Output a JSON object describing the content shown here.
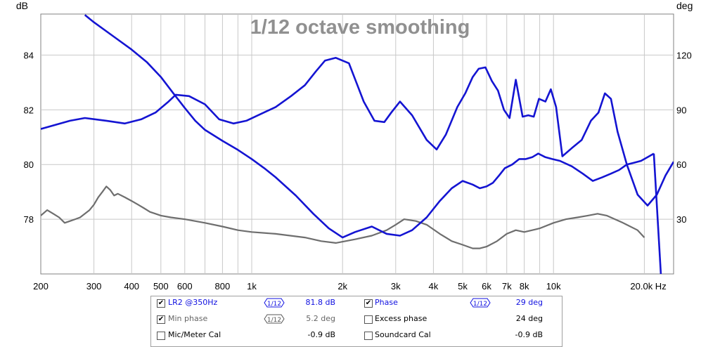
{
  "chart_data": {
    "type": "line",
    "title": "1/12 octave smoothing",
    "left_axis_unit": "dB",
    "right_axis_unit": "deg",
    "x_unit": "Hz",
    "x_scale": "log",
    "xlim": [
      200,
      25000
    ],
    "ylim_left": [
      76,
      85.5
    ],
    "ylim_right": [
      0,
      142.5
    ],
    "left_ticks": [
      78,
      80,
      82,
      84
    ],
    "right_ticks": [
      30,
      60,
      90,
      120
    ],
    "x_ticks": [
      200,
      300,
      400,
      500,
      600,
      800,
      1000,
      2000,
      3000,
      4000,
      5000,
      6000,
      7000,
      8000,
      10000,
      20000
    ],
    "x_tick_labels": [
      "200",
      "300",
      "400",
      "500",
      "600",
      "800",
      "1k",
      "2k",
      "3k",
      "4k",
      "5k",
      "6k",
      "7k",
      "8k",
      "10k",
      "20.0k Hz"
    ],
    "grid": true,
    "series": [
      {
        "name": "LR2 @350Hz",
        "axis": "left",
        "color": "#1414d2",
        "x": [
          200,
          250,
          280,
          330,
          380,
          430,
          480,
          530,
          560,
          620,
          700,
          780,
          870,
          960,
          1050,
          1200,
          1350,
          1500,
          1630,
          1750,
          1900,
          2100,
          2350,
          2550,
          2750,
          2900,
          3100,
          3400,
          3800,
          4100,
          4400,
          4800,
          5100,
          5400,
          5650,
          5950,
          6250,
          6550,
          6850,
          7150,
          7500,
          7900,
          8250,
          8600,
          8950,
          9400,
          9800,
          10200,
          10700,
          11500,
          12400,
          13300,
          14100,
          14800,
          15500,
          16300,
          17500,
          19000,
          20500,
          22000,
          23500,
          25000
        ],
        "values": [
          81.3,
          81.6,
          81.7,
          81.6,
          81.5,
          81.65,
          81.9,
          82.3,
          82.55,
          82.5,
          82.2,
          81.65,
          81.5,
          81.6,
          81.8,
          82.1,
          82.5,
          82.9,
          83.4,
          83.8,
          83.9,
          83.7,
          82.3,
          81.6,
          81.55,
          81.9,
          82.3,
          81.8,
          80.9,
          80.55,
          81.1,
          82.1,
          82.6,
          83.2,
          83.5,
          83.55,
          83.05,
          82.7,
          82.0,
          81.7,
          83.1,
          81.75,
          81.8,
          81.75,
          82.4,
          82.3,
          82.75,
          82.1,
          80.3,
          80.6,
          80.9,
          81.6,
          81.9,
          82.6,
          82.4,
          81.2,
          80.0,
          78.9,
          78.5,
          78.9,
          79.6,
          80.1
        ]
      },
      {
        "name": "Phase",
        "axis": "right",
        "color": "#1414d2",
        "x": [
          280,
          300,
          350,
          400,
          450,
          500,
          550,
          600,
          650,
          700,
          800,
          900,
          1000,
          1100,
          1200,
          1400,
          1600,
          1800,
          2000,
          2200,
          2500,
          2800,
          3100,
          3400,
          3800,
          4200,
          4600,
          5000,
          5400,
          5700,
          6000,
          6300,
          6600,
          6900,
          7300,
          7700,
          8100,
          8500,
          8900,
          9400,
          9900,
          10500,
          11500,
          12500,
          13500,
          14500,
          15500,
          16500,
          17500,
          18500,
          19500,
          20500,
          21500
        ],
        "values": [
          142,
          138,
          130,
          123,
          116,
          108,
          99,
          91,
          84,
          79,
          73,
          68,
          63,
          58,
          53,
          43,
          33,
          25,
          20,
          23,
          26,
          22,
          21,
          24,
          31,
          40,
          47,
          51,
          49,
          47,
          48,
          50,
          54,
          58,
          60,
          63,
          63,
          64,
          66,
          64,
          63,
          62,
          59,
          55,
          51,
          53,
          55,
          57,
          60,
          61,
          62,
          64,
          66
        ]
      },
      {
        "name": "Min phase",
        "axis": "right",
        "color": "#6e6e6e",
        "x": [
          200,
          210,
          220,
          230,
          240,
          250,
          260,
          270,
          280,
          290,
          300,
          310,
          320,
          330,
          340,
          350,
          360,
          380,
          400,
          420,
          440,
          460,
          480,
          500,
          540,
          600,
          700,
          800,
          900,
          1000,
          1200,
          1500,
          1700,
          1900,
          2200,
          2500,
          2800,
          3000,
          3200,
          3500,
          3800,
          4200,
          4600,
          5000,
          5400,
          5700,
          6000,
          6500,
          7000,
          7500,
          8000,
          8500,
          9000,
          10000,
          11000,
          12000,
          13000,
          14000,
          15000,
          17000,
          19000,
          20000
        ],
        "values": [
          32,
          35,
          33,
          31,
          28,
          29,
          30,
          31,
          33,
          35,
          38,
          42,
          45,
          48,
          46,
          43,
          44,
          42,
          40,
          38,
          36,
          34,
          33,
          32,
          31,
          30,
          28,
          26,
          24,
          23,
          22,
          20,
          18,
          17,
          19,
          21,
          24,
          27,
          30,
          29,
          27,
          22,
          18,
          16,
          14,
          14,
          15,
          18,
          22,
          24,
          23,
          24,
          25,
          28,
          30,
          31,
          32,
          33,
          32,
          28,
          24,
          20
        ]
      }
    ],
    "legend": [
      {
        "checked": true,
        "label": "LR2 @350Hz",
        "smoothing": "1/12",
        "value": "81.8 dB",
        "color": "#1010e0"
      },
      {
        "checked": true,
        "label": "Phase",
        "smoothing": "1/12",
        "value": "29 deg",
        "color": "#1010e0"
      },
      {
        "checked": true,
        "label": "Min phase",
        "smoothing": "1/12",
        "value": "5.2 deg",
        "color": "#777777"
      },
      {
        "checked": false,
        "label": "Excess phase",
        "value": "24 deg",
        "color": "#000000"
      },
      {
        "checked": false,
        "label": "Mic/Meter Cal",
        "value": "-0.9 dB",
        "color": "#000000"
      },
      {
        "checked": false,
        "label": "Soundcard Cal",
        "value": "-0.9 dB",
        "color": "#000000"
      }
    ]
  }
}
